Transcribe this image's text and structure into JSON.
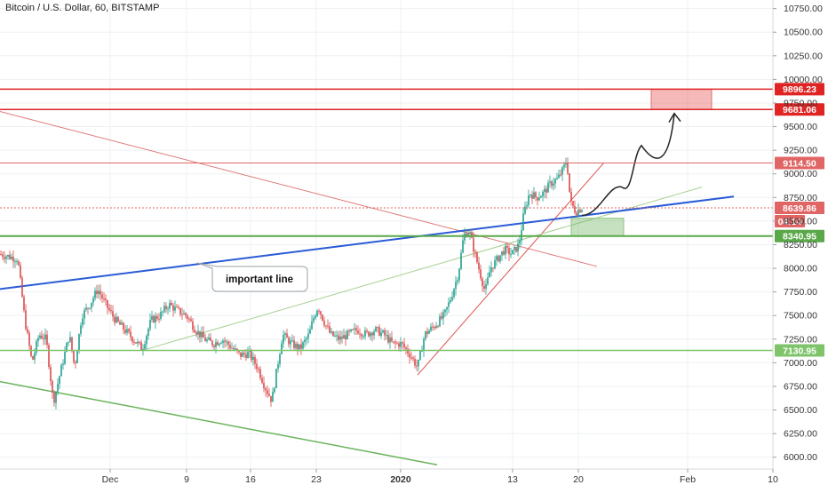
{
  "header": {
    "title": "Bitcoin / U.S. Dollar, 60, BITSTAMP"
  },
  "colors": {
    "background": "#ffffff",
    "grid": "#eef0f3",
    "candle_up": "#1f9e8c",
    "candle_down": "#d84a4a",
    "red_level": "#e02424",
    "green_level": "#5aa84a",
    "blue_trend": "#2a5bd7",
    "axis_text": "#333333"
  },
  "chart_data": {
    "type": "candlestick",
    "symbol": "Bitcoin / U.S. Dollar",
    "interval": "60",
    "exchange": "BITSTAMP",
    "ylim": [
      5875,
      10812.5
    ],
    "x_ticks": [
      "Dec",
      "9",
      "16",
      "23",
      "2020",
      "13",
      "20",
      "Feb",
      "10"
    ],
    "y_ticks": [
      "6000.00",
      "6250.00",
      "6500.00",
      "6750.00",
      "7000.00",
      "7250.00",
      "7500.00",
      "7750.00",
      "8000.00",
      "8250.00",
      "8500.00",
      "8750.00",
      "9000.00",
      "9250.00",
      "9500.00",
      "9750.00",
      "10000.00",
      "10250.00",
      "10500.00",
      "10750.00"
    ],
    "price_path": [
      [
        0,
        8150
      ],
      [
        20,
        8100
      ],
      [
        28,
        7450
      ],
      [
        36,
        7000
      ],
      [
        44,
        7300
      ],
      [
        52,
        7250
      ],
      [
        60,
        6580
      ],
      [
        68,
        6900
      ],
      [
        78,
        7300
      ],
      [
        84,
        6950
      ],
      [
        92,
        7500
      ],
      [
        100,
        7600
      ],
      [
        110,
        7780
      ],
      [
        120,
        7600
      ],
      [
        130,
        7450
      ],
      [
        140,
        7350
      ],
      [
        150,
        7250
      ],
      [
        160,
        7150
      ],
      [
        170,
        7450
      ],
      [
        180,
        7500
      ],
      [
        190,
        7620
      ],
      [
        200,
        7550
      ],
      [
        210,
        7500
      ],
      [
        220,
        7350
      ],
      [
        230,
        7250
      ],
      [
        240,
        7200
      ],
      [
        250,
        7250
      ],
      [
        262,
        7150
      ],
      [
        270,
        7080
      ],
      [
        280,
        7100
      ],
      [
        290,
        6950
      ],
      [
        298,
        6750
      ],
      [
        306,
        6600
      ],
      [
        312,
        6950
      ],
      [
        318,
        7300
      ],
      [
        328,
        7200
      ],
      [
        338,
        7150
      ],
      [
        348,
        7300
      ],
      [
        352,
        7450
      ],
      [
        358,
        7600
      ],
      [
        364,
        7450
      ],
      [
        372,
        7300
      ],
      [
        382,
        7250
      ],
      [
        392,
        7300
      ],
      [
        402,
        7350
      ],
      [
        412,
        7300
      ],
      [
        422,
        7350
      ],
      [
        432,
        7300
      ],
      [
        442,
        7200
      ],
      [
        452,
        7200
      ],
      [
        462,
        7080
      ],
      [
        470,
        6950
      ],
      [
        478,
        7300
      ],
      [
        490,
        7400
      ],
      [
        500,
        7500
      ],
      [
        508,
        7700
      ],
      [
        516,
        7950
      ],
      [
        522,
        8350
      ],
      [
        528,
        8400
      ],
      [
        536,
        8100
      ],
      [
        546,
        7750
      ],
      [
        552,
        8000
      ],
      [
        560,
        8100
      ],
      [
        568,
        8200
      ],
      [
        576,
        8150
      ],
      [
        584,
        8250
      ],
      [
        590,
        8600
      ],
      [
        596,
        8800
      ],
      [
        604,
        8750
      ],
      [
        612,
        8800
      ],
      [
        620,
        8900
      ],
      [
        628,
        8950
      ],
      [
        634,
        9050
      ],
      [
        638,
        9150
      ],
      [
        642,
        8700
      ],
      [
        648,
        8600
      ],
      [
        655,
        8640
      ]
    ],
    "levels": [
      {
        "label": "9896.23",
        "value": 9896.23,
        "color": "#e02424",
        "kind": "horizontal"
      },
      {
        "label": "9681.06",
        "value": 9681.06,
        "color": "#e02424",
        "kind": "horizontal"
      },
      {
        "label": "9114.50",
        "value": 9114.5,
        "color": "#e06666",
        "kind": "horizontal"
      },
      {
        "label": "8639.86",
        "value": 8639.86,
        "color": "#e06666",
        "kind": "current"
      },
      {
        "label": "8340.95",
        "value": 8340.95,
        "color": "#5aa84a",
        "kind": "horizontal"
      },
      {
        "label": "7130.95",
        "value": 7130.95,
        "color": "#7fc46a",
        "kind": "horizontal"
      }
    ],
    "countdown": "04:14",
    "annotations": [
      {
        "text": "important line"
      }
    ],
    "grid": true
  }
}
